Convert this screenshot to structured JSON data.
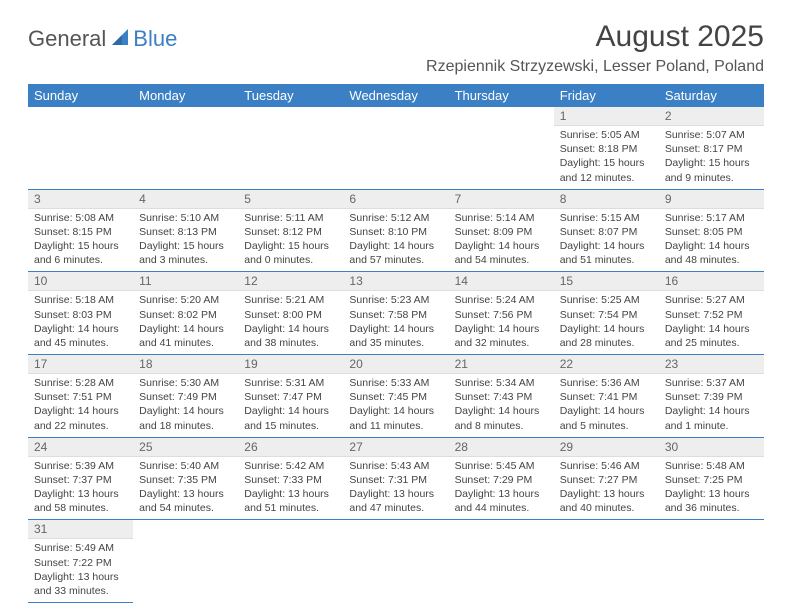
{
  "brand": {
    "part1": "General",
    "part2": "Blue"
  },
  "title": "August 2025",
  "location": "Rzepiennik Strzyzewski, Lesser Poland, Poland",
  "colors": {
    "header_bg": "#3b7fc4",
    "header_fg": "#ffffff",
    "daynum_bg": "#eeeeee",
    "cell_border": "#3b7fc4"
  },
  "weekdays": [
    "Sunday",
    "Monday",
    "Tuesday",
    "Wednesday",
    "Thursday",
    "Friday",
    "Saturday"
  ],
  "weeks": [
    [
      null,
      null,
      null,
      null,
      null,
      {
        "n": "1",
        "sr": "Sunrise: 5:05 AM",
        "ss": "Sunset: 8:18 PM",
        "dl": "Daylight: 15 hours and 12 minutes."
      },
      {
        "n": "2",
        "sr": "Sunrise: 5:07 AM",
        "ss": "Sunset: 8:17 PM",
        "dl": "Daylight: 15 hours and 9 minutes."
      }
    ],
    [
      {
        "n": "3",
        "sr": "Sunrise: 5:08 AM",
        "ss": "Sunset: 8:15 PM",
        "dl": "Daylight: 15 hours and 6 minutes."
      },
      {
        "n": "4",
        "sr": "Sunrise: 5:10 AM",
        "ss": "Sunset: 8:13 PM",
        "dl": "Daylight: 15 hours and 3 minutes."
      },
      {
        "n": "5",
        "sr": "Sunrise: 5:11 AM",
        "ss": "Sunset: 8:12 PM",
        "dl": "Daylight: 15 hours and 0 minutes."
      },
      {
        "n": "6",
        "sr": "Sunrise: 5:12 AM",
        "ss": "Sunset: 8:10 PM",
        "dl": "Daylight: 14 hours and 57 minutes."
      },
      {
        "n": "7",
        "sr": "Sunrise: 5:14 AM",
        "ss": "Sunset: 8:09 PM",
        "dl": "Daylight: 14 hours and 54 minutes."
      },
      {
        "n": "8",
        "sr": "Sunrise: 5:15 AM",
        "ss": "Sunset: 8:07 PM",
        "dl": "Daylight: 14 hours and 51 minutes."
      },
      {
        "n": "9",
        "sr": "Sunrise: 5:17 AM",
        "ss": "Sunset: 8:05 PM",
        "dl": "Daylight: 14 hours and 48 minutes."
      }
    ],
    [
      {
        "n": "10",
        "sr": "Sunrise: 5:18 AM",
        "ss": "Sunset: 8:03 PM",
        "dl": "Daylight: 14 hours and 45 minutes."
      },
      {
        "n": "11",
        "sr": "Sunrise: 5:20 AM",
        "ss": "Sunset: 8:02 PM",
        "dl": "Daylight: 14 hours and 41 minutes."
      },
      {
        "n": "12",
        "sr": "Sunrise: 5:21 AM",
        "ss": "Sunset: 8:00 PM",
        "dl": "Daylight: 14 hours and 38 minutes."
      },
      {
        "n": "13",
        "sr": "Sunrise: 5:23 AM",
        "ss": "Sunset: 7:58 PM",
        "dl": "Daylight: 14 hours and 35 minutes."
      },
      {
        "n": "14",
        "sr": "Sunrise: 5:24 AM",
        "ss": "Sunset: 7:56 PM",
        "dl": "Daylight: 14 hours and 32 minutes."
      },
      {
        "n": "15",
        "sr": "Sunrise: 5:25 AM",
        "ss": "Sunset: 7:54 PM",
        "dl": "Daylight: 14 hours and 28 minutes."
      },
      {
        "n": "16",
        "sr": "Sunrise: 5:27 AM",
        "ss": "Sunset: 7:52 PM",
        "dl": "Daylight: 14 hours and 25 minutes."
      }
    ],
    [
      {
        "n": "17",
        "sr": "Sunrise: 5:28 AM",
        "ss": "Sunset: 7:51 PM",
        "dl": "Daylight: 14 hours and 22 minutes."
      },
      {
        "n": "18",
        "sr": "Sunrise: 5:30 AM",
        "ss": "Sunset: 7:49 PM",
        "dl": "Daylight: 14 hours and 18 minutes."
      },
      {
        "n": "19",
        "sr": "Sunrise: 5:31 AM",
        "ss": "Sunset: 7:47 PM",
        "dl": "Daylight: 14 hours and 15 minutes."
      },
      {
        "n": "20",
        "sr": "Sunrise: 5:33 AM",
        "ss": "Sunset: 7:45 PM",
        "dl": "Daylight: 14 hours and 11 minutes."
      },
      {
        "n": "21",
        "sr": "Sunrise: 5:34 AM",
        "ss": "Sunset: 7:43 PM",
        "dl": "Daylight: 14 hours and 8 minutes."
      },
      {
        "n": "22",
        "sr": "Sunrise: 5:36 AM",
        "ss": "Sunset: 7:41 PM",
        "dl": "Daylight: 14 hours and 5 minutes."
      },
      {
        "n": "23",
        "sr": "Sunrise: 5:37 AM",
        "ss": "Sunset: 7:39 PM",
        "dl": "Daylight: 14 hours and 1 minute."
      }
    ],
    [
      {
        "n": "24",
        "sr": "Sunrise: 5:39 AM",
        "ss": "Sunset: 7:37 PM",
        "dl": "Daylight: 13 hours and 58 minutes."
      },
      {
        "n": "25",
        "sr": "Sunrise: 5:40 AM",
        "ss": "Sunset: 7:35 PM",
        "dl": "Daylight: 13 hours and 54 minutes."
      },
      {
        "n": "26",
        "sr": "Sunrise: 5:42 AM",
        "ss": "Sunset: 7:33 PM",
        "dl": "Daylight: 13 hours and 51 minutes."
      },
      {
        "n": "27",
        "sr": "Sunrise: 5:43 AM",
        "ss": "Sunset: 7:31 PM",
        "dl": "Daylight: 13 hours and 47 minutes."
      },
      {
        "n": "28",
        "sr": "Sunrise: 5:45 AM",
        "ss": "Sunset: 7:29 PM",
        "dl": "Daylight: 13 hours and 44 minutes."
      },
      {
        "n": "29",
        "sr": "Sunrise: 5:46 AM",
        "ss": "Sunset: 7:27 PM",
        "dl": "Daylight: 13 hours and 40 minutes."
      },
      {
        "n": "30",
        "sr": "Sunrise: 5:48 AM",
        "ss": "Sunset: 7:25 PM",
        "dl": "Daylight: 13 hours and 36 minutes."
      }
    ],
    [
      {
        "n": "31",
        "sr": "Sunrise: 5:49 AM",
        "ss": "Sunset: 7:22 PM",
        "dl": "Daylight: 13 hours and 33 minutes."
      },
      null,
      null,
      null,
      null,
      null,
      null
    ]
  ]
}
